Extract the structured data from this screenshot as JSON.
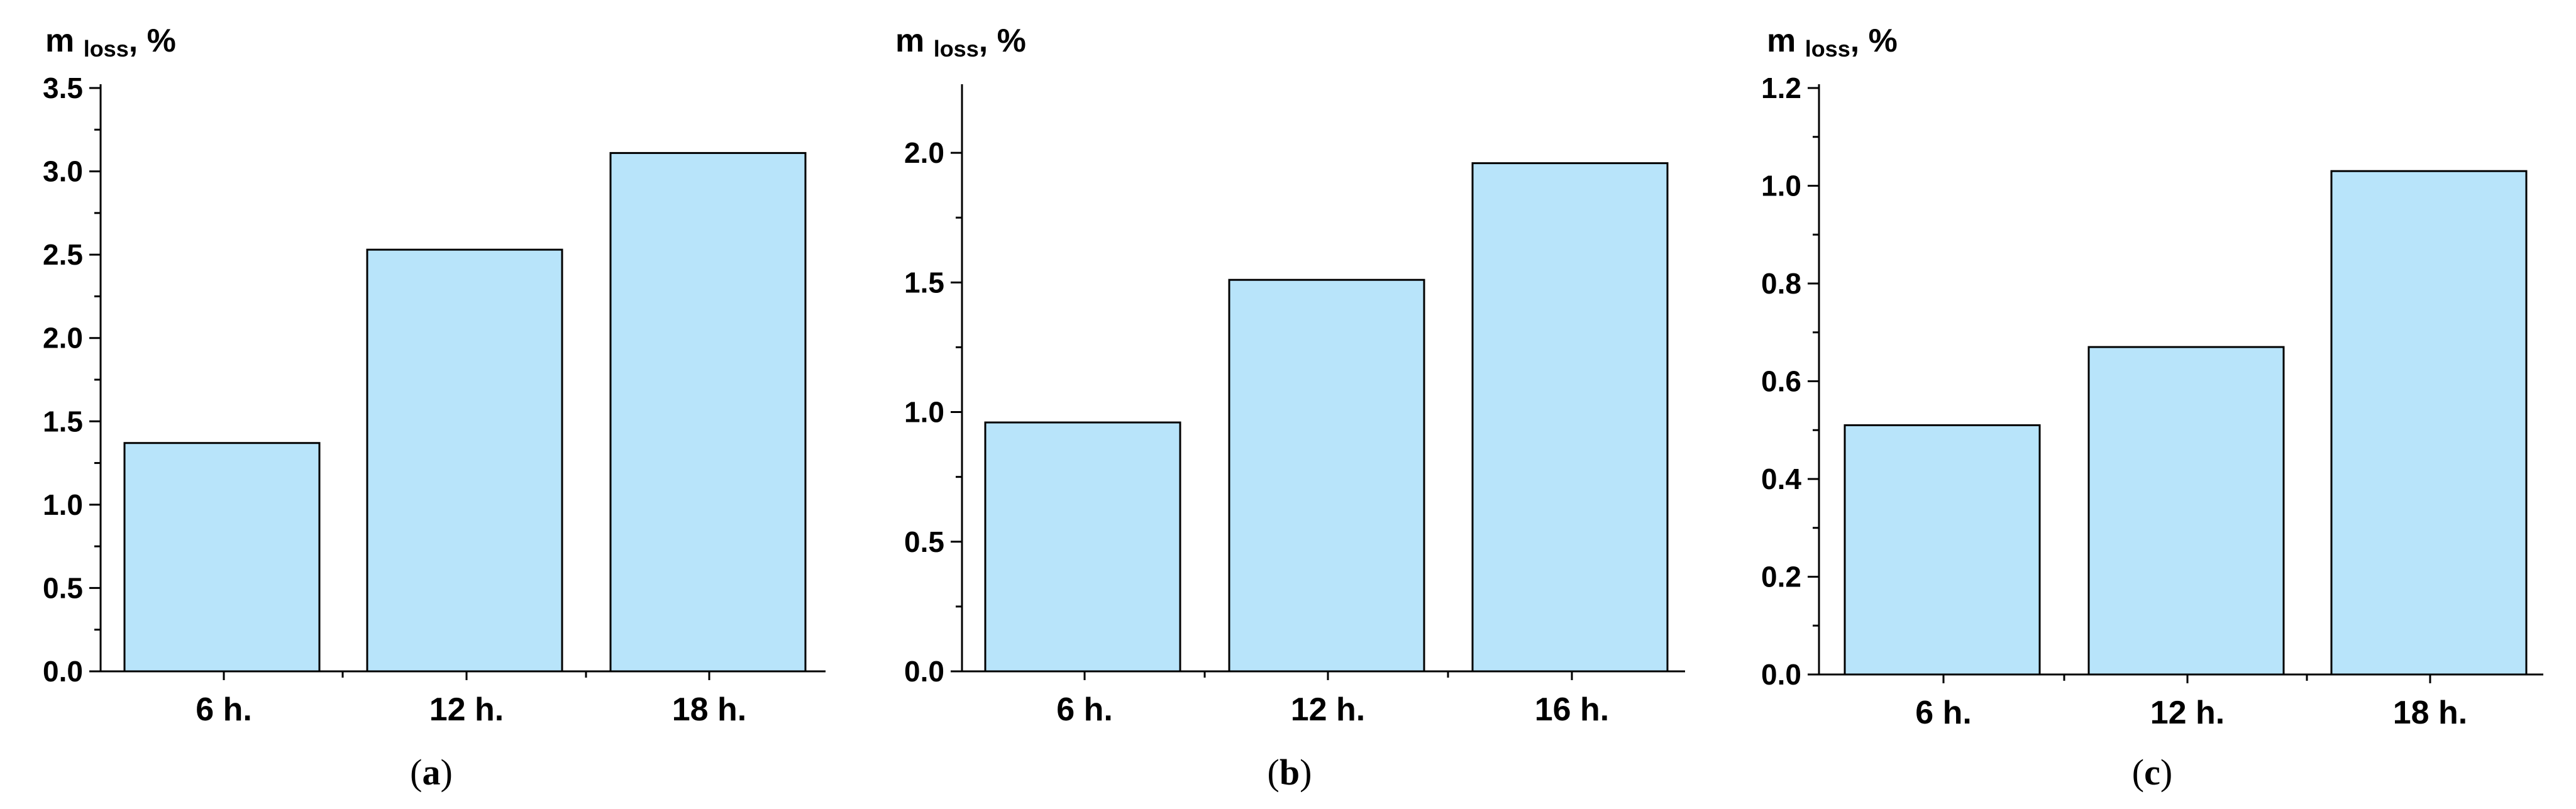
{
  "chart_data": [
    {
      "type": "bar",
      "panel_label": "a",
      "ylabel_main": "m",
      "ylabel_sub": "loss",
      "ylabel_unit": ", %",
      "categories": [
        "6 h.",
        "12 h.",
        "18 h."
      ],
      "values": [
        1.37,
        2.53,
        3.11
      ],
      "ylim": [
        0,
        3.5
      ],
      "yticks": [
        "0.0",
        "0.5",
        "1.0",
        "1.5",
        "2.0",
        "2.5",
        "3.0",
        "3.5"
      ],
      "bar_color": "#b8e4fa",
      "grid": false
    },
    {
      "type": "bar",
      "panel_label": "b",
      "ylabel_main": "m",
      "ylabel_sub": "loss",
      "ylabel_unit": ", %",
      "categories": [
        "6 h.",
        "12 h.",
        "16 h."
      ],
      "values": [
        0.96,
        1.51,
        1.96
      ],
      "ylim": [
        0,
        2.25
      ],
      "yticks": [
        "0.0",
        "0.5",
        "1.0",
        "1.5",
        "2.0"
      ],
      "bar_color": "#b8e4fa",
      "grid": false
    },
    {
      "type": "bar",
      "panel_label": "c",
      "ylabel_main": "m",
      "ylabel_sub": "loss",
      "ylabel_unit": ", %",
      "categories": [
        "6 h.",
        "12 h.",
        "18 h."
      ],
      "values": [
        0.51,
        0.67,
        1.03
      ],
      "ylim": [
        0,
        1.2
      ],
      "yticks": [
        "0.0",
        "0.2",
        "0.4",
        "0.6",
        "0.8",
        "1.0",
        "1.2"
      ],
      "bar_color": "#b8e4fa",
      "grid": false
    }
  ]
}
